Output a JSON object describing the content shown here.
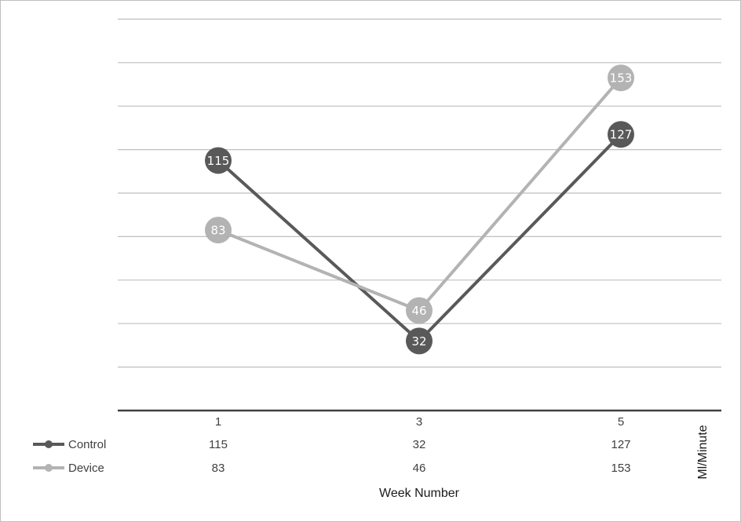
{
  "chart_data": {
    "type": "line",
    "categories": [
      "1",
      "3",
      "5"
    ],
    "series": [
      {
        "name": "Control",
        "values": [
          115,
          32,
          127
        ],
        "color": "#595959"
      },
      {
        "name": "Device",
        "values": [
          83,
          46,
          153
        ],
        "color": "#b3b3b3"
      }
    ],
    "xlabel": "Week Number",
    "ylabel": "Ml/Minute",
    "ylim": [
      0,
      180
    ],
    "grid": true,
    "legend": "data-table-left",
    "gridline_color": "#bfbfbf",
    "axis_color": "#404040"
  }
}
